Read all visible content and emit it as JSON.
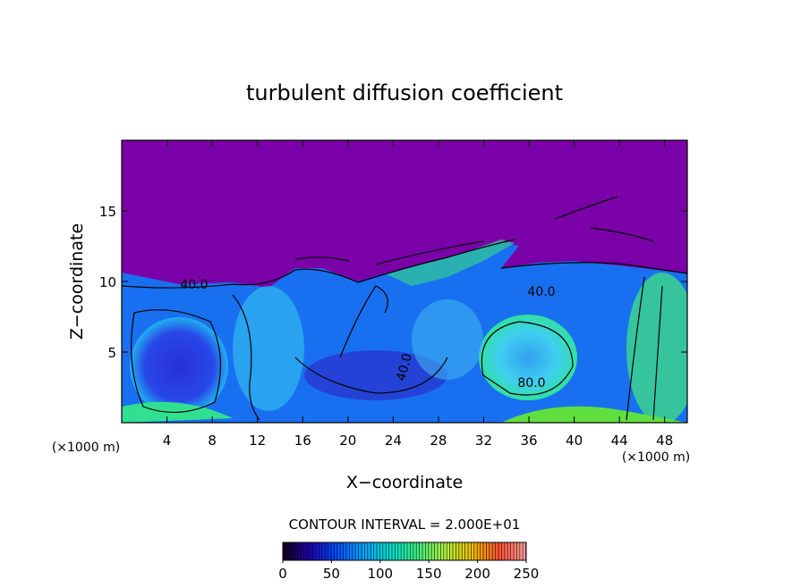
{
  "chart_data": {
    "type": "contour",
    "title": "turbulent diffusion coefficient",
    "xlabel": "X−coordinate",
    "ylabel": "Z−coordinate",
    "x_unit_left": "(×1000 m)",
    "x_unit_right": "(×1000 m)",
    "xlim": [
      0,
      50
    ],
    "xticks": [
      4,
      8,
      12,
      16,
      20,
      24,
      28,
      32,
      36,
      40,
      44,
      48
    ],
    "ylim": [
      0,
      20
    ],
    "yticks": [
      5,
      10,
      15
    ],
    "contour_interval": "CONTOUR INTERVAL = 2.000E+01",
    "contour_labels": [
      "40.0",
      "40.0",
      "40.0",
      "80.0"
    ],
    "colorbar": {
      "lim": [
        0,
        250
      ],
      "ticks": [
        0,
        50,
        100,
        150,
        200,
        250
      ],
      "colors": [
        "#100020",
        "#2000b0",
        "#0050ff",
        "#00a8ff",
        "#00e0d0",
        "#40f080",
        "#b0f040",
        "#f0c000",
        "#ff5030",
        "#ffa0a0"
      ]
    }
  }
}
